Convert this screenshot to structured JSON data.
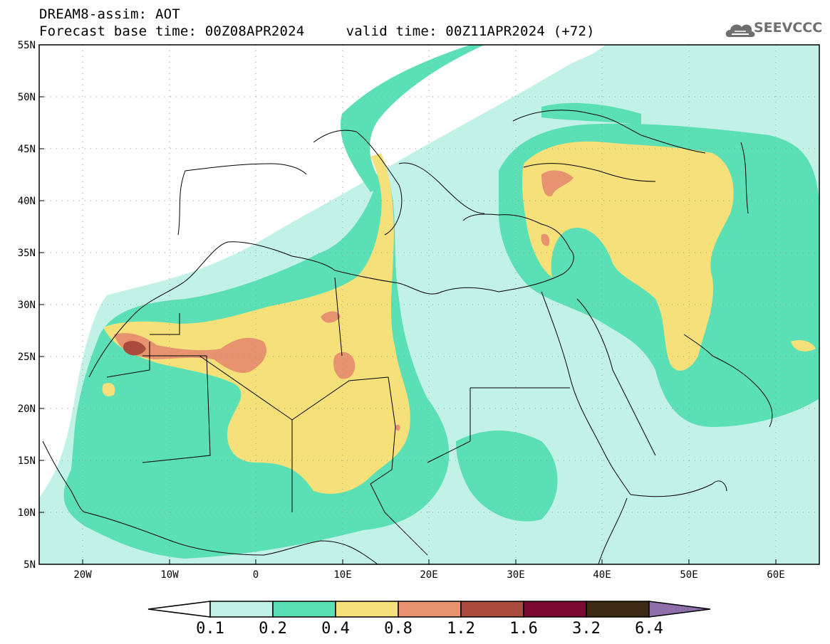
{
  "header": {
    "title_line1": "DREAM8-assim: AOT",
    "title_line2": "Forecast base time: 00Z08APR2024     valid time: 00Z11APR2024 (+72)"
  },
  "logo": {
    "text": "SEEVCCC",
    "icon": "cloud-logo-icon",
    "color": "#6f6f6f"
  },
  "map": {
    "lat_labels": [
      "55N",
      "50N",
      "45N",
      "40N",
      "35N",
      "30N",
      "25N",
      "20N",
      "15N",
      "10N",
      "5N"
    ],
    "lon_labels": [
      "20W",
      "10W",
      "0",
      "10E",
      "20E",
      "30E",
      "40E",
      "50E",
      "60E"
    ]
  },
  "colorbar": {
    "labels": [
      "0.1",
      "0.2",
      "0.4",
      "0.8",
      "1.2",
      "1.6",
      "3.2",
      "6.4"
    ],
    "colors": [
      "#c2f1e8",
      "#5bdfb4",
      "#f5e07a",
      "#e89370",
      "#aa4b3d",
      "#7d0a32",
      "#3e2a14",
      "#8d6ea8"
    ],
    "under_color": "#ffffff"
  },
  "field_colors": {
    "level1": "#c2f1e8",
    "level2": "#5bdfb4",
    "level3": "#f5e07a",
    "level4": "#e89370",
    "level5": "#aa4b3d"
  }
}
